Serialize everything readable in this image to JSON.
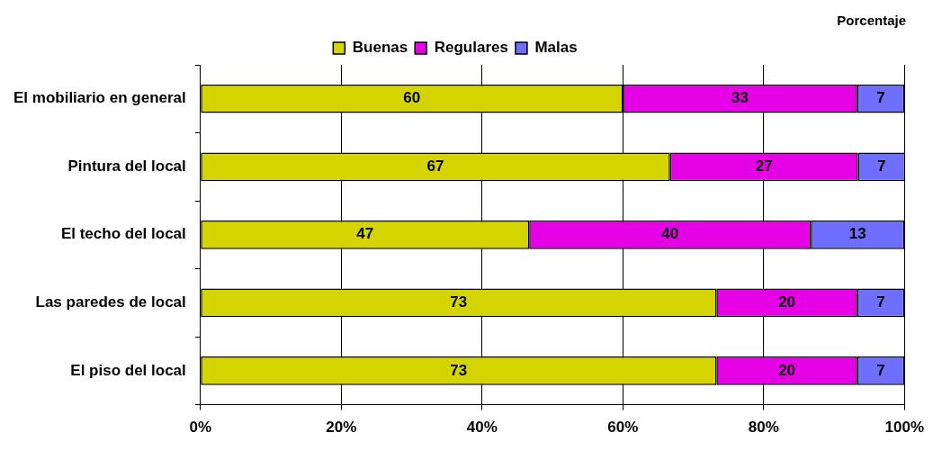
{
  "chart_data": {
    "type": "bar",
    "orientation": "horizontal",
    "stacked": true,
    "title": "Porcentaje",
    "categories": [
      "El mobiliario en general",
      "Pintura del local",
      "El techo del local",
      "Las paredes de local",
      "El piso del local"
    ],
    "series": [
      {
        "name": "Buenas",
        "color": "#d4d400",
        "values": [
          60,
          66.7,
          46.7,
          73.3,
          73.3
        ],
        "value_labels": [
          "60",
          "67",
          "47",
          "73",
          "73"
        ]
      },
      {
        "name": "Regulares",
        "color": "#e600e6",
        "values": [
          33.3,
          26.7,
          40,
          20,
          20
        ],
        "value_labels": [
          "33",
          "27",
          "40",
          "20",
          "20"
        ]
      },
      {
        "name": "Malas",
        "color": "#6f6fff",
        "values": [
          6.7,
          6.7,
          13.3,
          6.7,
          6.7
        ],
        "value_labels": [
          "7",
          "7",
          "13",
          "7",
          "7"
        ]
      }
    ],
    "xlim": [
      0,
      100
    ],
    "xticks": [
      {
        "value": 0,
        "label": "0%"
      },
      {
        "value": 20,
        "label": "20%"
      },
      {
        "value": 40,
        "label": "40%"
      },
      {
        "value": 60,
        "label": "60%"
      },
      {
        "value": 80,
        "label": "80%"
      },
      {
        "value": 100,
        "label": "100%"
      }
    ],
    "grid": "x",
    "legend": "top"
  }
}
